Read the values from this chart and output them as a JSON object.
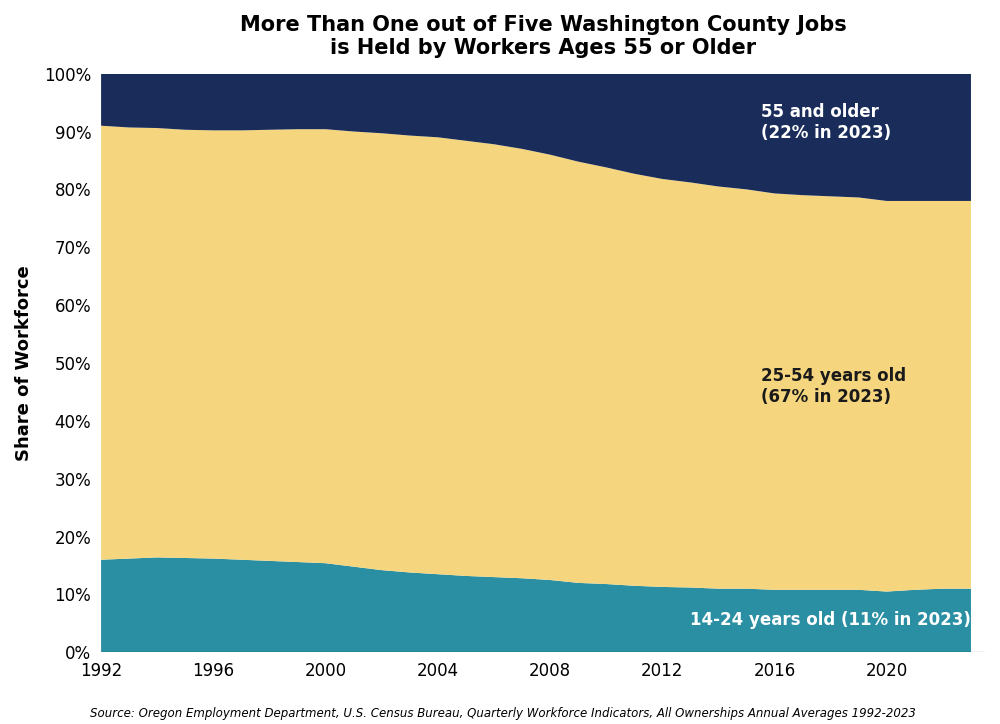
{
  "title_line1": "More Than One out of Five Washington County Jobs",
  "title_line2": "is Held by Workers Ages 55 or Older",
  "xlabel": "",
  "ylabel": "Share of Workforce",
  "source": "Source: Oregon Employment Department, U.S. Census Bureau, Quarterly Workforce Indicators, All Ownerships Annual Averages 1992-2023",
  "years": [
    1992,
    1993,
    1994,
    1995,
    1996,
    1997,
    1998,
    1999,
    2000,
    2001,
    2002,
    2003,
    2004,
    2005,
    2006,
    2007,
    2008,
    2009,
    2010,
    2011,
    2012,
    2013,
    2014,
    2015,
    2016,
    2017,
    2018,
    2019,
    2020,
    2021,
    2022,
    2023
  ],
  "age_14_24": [
    16.0,
    16.2,
    16.4,
    16.3,
    16.2,
    16.0,
    15.8,
    15.6,
    15.4,
    14.8,
    14.2,
    13.8,
    13.5,
    13.2,
    13.0,
    12.8,
    12.5,
    12.0,
    11.8,
    11.5,
    11.3,
    11.2,
    11.0,
    11.0,
    10.8,
    10.8,
    10.8,
    10.8,
    10.5,
    10.8,
    11.0,
    11.0
  ],
  "age_25_54": [
    75.0,
    74.5,
    74.2,
    74.0,
    74.0,
    74.2,
    74.5,
    74.8,
    75.0,
    75.2,
    75.5,
    75.5,
    75.5,
    75.2,
    74.8,
    74.2,
    73.5,
    72.8,
    72.0,
    71.2,
    70.5,
    70.0,
    69.5,
    69.0,
    68.5,
    68.2,
    68.0,
    67.8,
    67.5,
    67.2,
    67.0,
    67.0
  ],
  "age_55_plus": [
    9.0,
    9.3,
    9.4,
    9.7,
    9.8,
    9.8,
    9.7,
    9.6,
    9.6,
    10.0,
    10.3,
    10.7,
    11.0,
    11.6,
    12.2,
    13.0,
    14.0,
    15.2,
    16.2,
    17.3,
    18.2,
    18.8,
    19.5,
    20.0,
    20.7,
    21.0,
    21.2,
    21.4,
    22.0,
    22.0,
    22.0,
    22.0
  ],
  "color_14_24": "#2a8fa3",
  "color_25_54": "#f5d67e",
  "color_55_plus": "#1a2d5a",
  "label_14_24": "14-24 years old (11% in 2023)",
  "label_25_54": "25-54 years old\n(67% in 2023)",
  "label_55_plus": "55 and older\n(22% in 2023)",
  "ann_14_24_x": 2023,
  "ann_14_24_y": 5.5,
  "ann_25_54_x": 2015.5,
  "ann_25_54_y": 46.0,
  "ann_55_plus_x": 2015.5,
  "ann_55_plus_y": 91.5,
  "background_color": "#ffffff",
  "ylim": [
    0,
    100
  ],
  "xlim_start": 1992,
  "xlim_end": 2023.5,
  "xticks": [
    1992,
    1996,
    2000,
    2004,
    2008,
    2012,
    2016,
    2020
  ],
  "yticks": [
    0,
    10,
    20,
    30,
    40,
    50,
    60,
    70,
    80,
    90,
    100
  ]
}
